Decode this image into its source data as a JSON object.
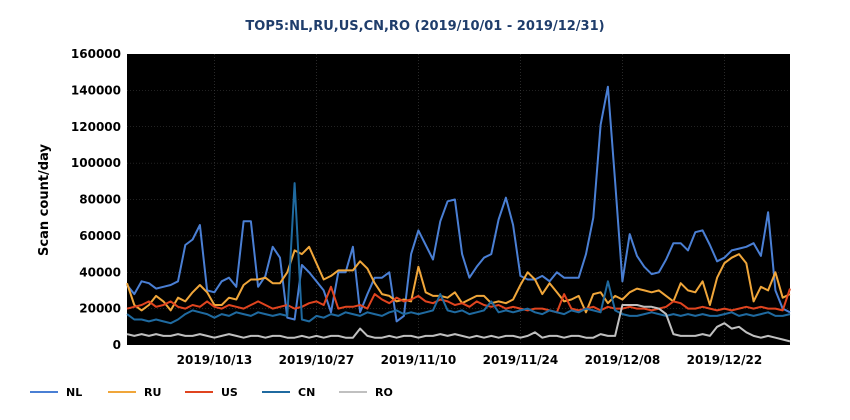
{
  "chart_data": {
    "type": "line",
    "title": "TOP5:NL,RU,US,CN,RO (2019/10/01 - 2019/12/31)",
    "xlabel": "",
    "ylabel": "Scan count/day",
    "ylim": [
      0,
      160000
    ],
    "yticks": [
      0,
      20000,
      40000,
      60000,
      80000,
      100000,
      120000,
      140000,
      160000
    ],
    "xlim": [
      "2019/10/01",
      "2019/12/31"
    ],
    "xticks": [
      "2019/10/13",
      "2019/10/27",
      "2019/11/10",
      "2019/11/24",
      "2019/12/08",
      "2019/12/22"
    ],
    "grid": true,
    "legend": "bottom",
    "background": "#000000",
    "series": [
      {
        "name": "NL",
        "color": "#4a7fd4",
        "values": [
          33000,
          28000,
          35000,
          34000,
          31000,
          32000,
          33000,
          35000,
          55000,
          58000,
          66000,
          30000,
          29000,
          35000,
          37000,
          32000,
          68000,
          68000,
          32000,
          38000,
          54000,
          48000,
          15000,
          14000,
          44000,
          40000,
          35000,
          30000,
          18000,
          40000,
          40000,
          54000,
          18000,
          28000,
          37000,
          37000,
          40000,
          13000,
          16000,
          50000,
          63000,
          55000,
          47000,
          68000,
          79000,
          80000,
          50000,
          37000,
          43000,
          48000,
          50000,
          69000,
          81000,
          66000,
          38000,
          36000,
          36000,
          38000,
          35000,
          40000,
          37000,
          37000,
          37000,
          50000,
          70000,
          121000,
          142000,
          90000,
          35000,
          61000,
          49000,
          43000,
          39000,
          40000,
          47000,
          56000,
          56000,
          52000,
          62000,
          63000,
          55000,
          46000,
          48000,
          52000,
          53000,
          54000,
          56000,
          49000,
          73000,
          30000,
          20000,
          18000
        ]
      },
      {
        "name": "RU",
        "color": "#f0a63a",
        "values": [
          34000,
          22000,
          19000,
          22000,
          27000,
          24000,
          19000,
          26000,
          24000,
          29000,
          33000,
          29000,
          22000,
          22000,
          26000,
          25000,
          33000,
          36000,
          36000,
          37000,
          34000,
          34000,
          40000,
          52000,
          50000,
          54000,
          45000,
          36000,
          38000,
          41000,
          41000,
          41000,
          46000,
          42000,
          34000,
          28000,
          27000,
          24000,
          25000,
          24000,
          43000,
          29000,
          27000,
          27000,
          26000,
          29000,
          23000,
          25000,
          27000,
          27000,
          23000,
          24000,
          23000,
          25000,
          33000,
          40000,
          36000,
          28000,
          34000,
          29000,
          24000,
          25000,
          27000,
          18000,
          28000,
          29000,
          23000,
          27000,
          25000,
          29000,
          31000,
          30000,
          29000,
          30000,
          27000,
          24000,
          34000,
          30000,
          29000,
          35000,
          22000,
          37000,
          45000,
          48000,
          50000,
          45000,
          24000,
          32000,
          30000,
          40000,
          26000,
          28000
        ]
      },
      {
        "name": "US",
        "color": "#e0441f",
        "values": [
          20000,
          21000,
          22000,
          24000,
          21000,
          22000,
          24000,
          21000,
          20000,
          22000,
          21000,
          24000,
          21000,
          20000,
          22000,
          21000,
          20000,
          22000,
          24000,
          22000,
          20000,
          21000,
          22000,
          20000,
          21000,
          23000,
          24000,
          22000,
          32000,
          20000,
          21000,
          21000,
          22000,
          20000,
          28000,
          25000,
          23000,
          26000,
          24000,
          25000,
          27000,
          24000,
          23000,
          25000,
          24000,
          22000,
          23000,
          21000,
          24000,
          22000,
          21000,
          22000,
          20000,
          21000,
          20000,
          19000,
          20000,
          20000,
          19000,
          18000,
          28000,
          20000,
          19000,
          20000,
          21000,
          19000,
          21000,
          20000,
          20000,
          21000,
          20000,
          20000,
          19000,
          20000,
          21000,
          24000,
          23000,
          20000,
          20000,
          21000,
          20000,
          19000,
          20000,
          19000,
          20000,
          21000,
          20000,
          21000,
          20000,
          20000,
          19000,
          31000
        ]
      },
      {
        "name": "CN",
        "color": "#1f6aa0",
        "values": [
          17000,
          14000,
          14000,
          13000,
          14000,
          13000,
          12000,
          14000,
          17000,
          19000,
          18000,
          17000,
          15000,
          17000,
          16000,
          18000,
          17000,
          16000,
          18000,
          17000,
          16000,
          17000,
          16000,
          89000,
          14000,
          13000,
          16000,
          15000,
          17000,
          16000,
          18000,
          17000,
          16000,
          18000,
          17000,
          16000,
          18000,
          19000,
          17000,
          18000,
          17000,
          18000,
          19000,
          28000,
          19000,
          18000,
          19000,
          17000,
          18000,
          19000,
          24000,
          18000,
          19000,
          18000,
          19000,
          20000,
          18000,
          17000,
          19000,
          18000,
          17000,
          19000,
          18000,
          20000,
          19000,
          18000,
          35000,
          19000,
          17000,
          16000,
          16000,
          17000,
          18000,
          17000,
          16000,
          17000,
          16000,
          17000,
          16000,
          17000,
          16000,
          16000,
          17000,
          18000,
          16000,
          17000,
          16000,
          17000,
          18000,
          16000,
          16000,
          17000
        ]
      },
      {
        "name": "RO",
        "color": "#c0c0c0",
        "values": [
          6000,
          5000,
          6000,
          5000,
          6000,
          5000,
          5000,
          6000,
          5000,
          5000,
          6000,
          5000,
          4000,
          5000,
          6000,
          5000,
          4000,
          5000,
          5000,
          4000,
          5000,
          5000,
          4000,
          4000,
          5000,
          4000,
          5000,
          4000,
          5000,
          5000,
          4000,
          4000,
          9000,
          5000,
          4000,
          4000,
          5000,
          4000,
          5000,
          5000,
          4000,
          5000,
          5000,
          6000,
          5000,
          6000,
          5000,
          4000,
          5000,
          4000,
          5000,
          4000,
          5000,
          5000,
          4000,
          5000,
          7000,
          4000,
          5000,
          5000,
          4000,
          5000,
          5000,
          4000,
          4000,
          6000,
          5000,
          5000,
          22000,
          22000,
          22000,
          21000,
          21000,
          20000,
          17000,
          6000,
          5000,
          5000,
          5000,
          6000,
          5000,
          10000,
          12000,
          9000,
          10000,
          7000,
          5000,
          4000,
          5000,
          4000,
          3000,
          2000
        ]
      }
    ]
  }
}
